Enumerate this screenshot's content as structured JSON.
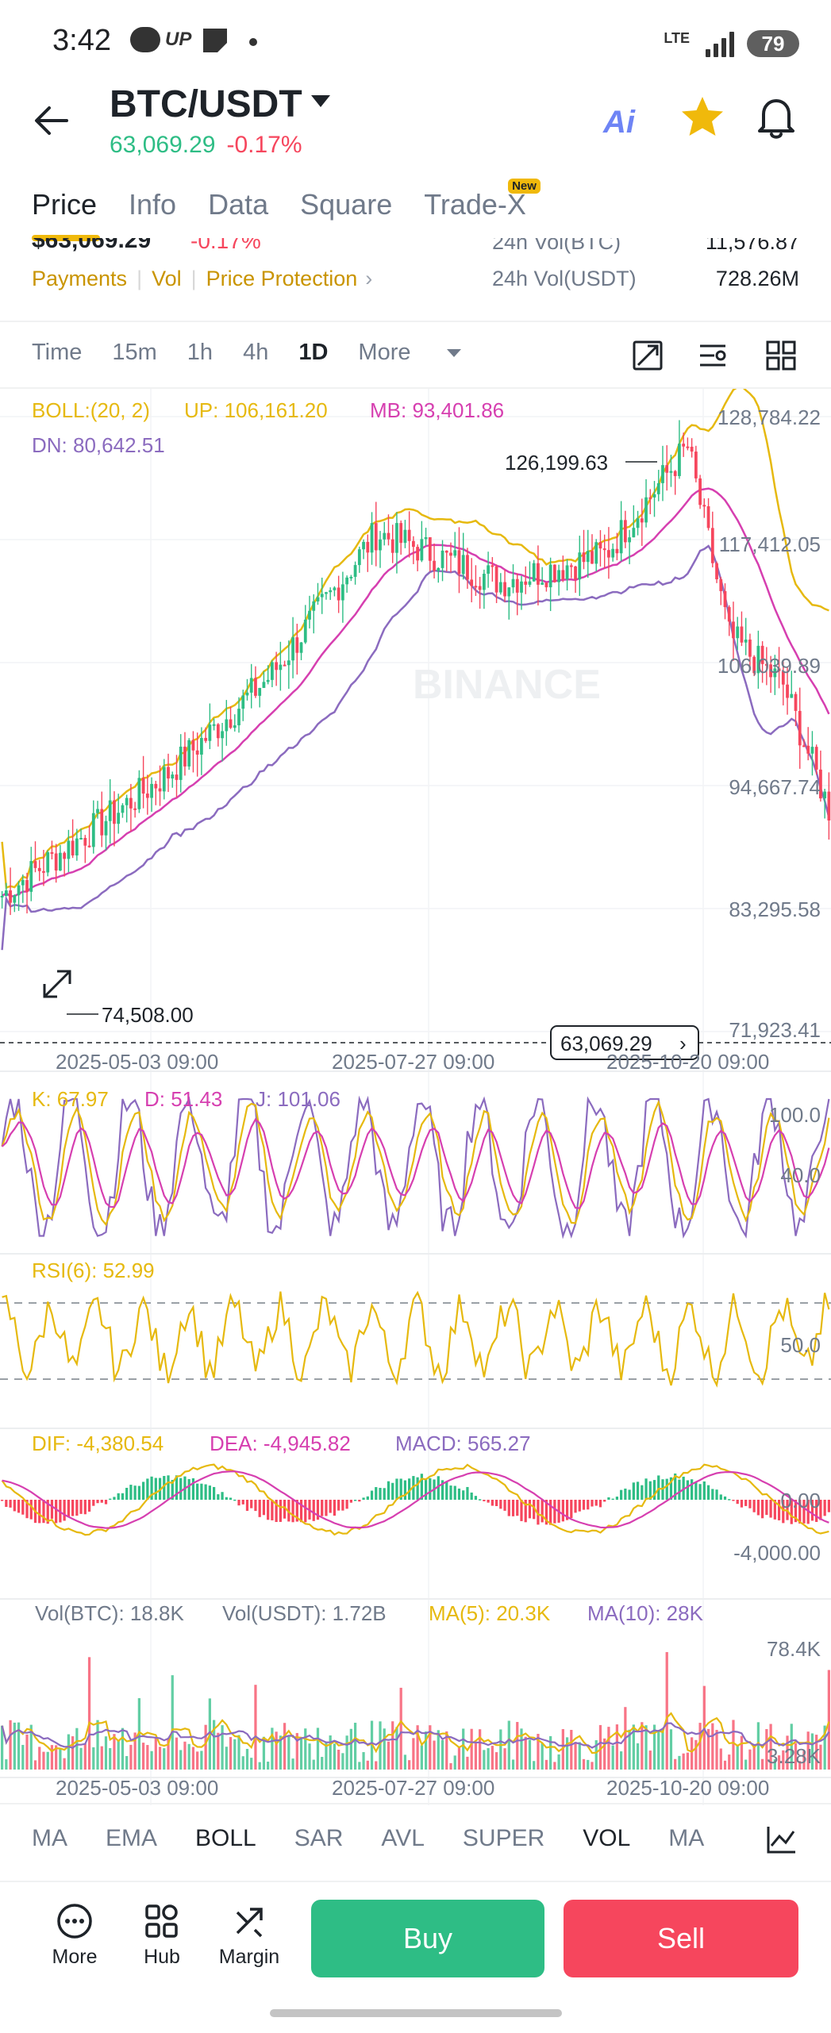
{
  "status_bar": {
    "time": "3:42",
    "battery": "79",
    "network": "LTE"
  },
  "header": {
    "pair": "BTC/USDT",
    "last_price": "63,069.29",
    "change": "-0.17%",
    "ai_label": "Ai"
  },
  "tabs": [
    {
      "label": "Price",
      "active": true
    },
    {
      "label": "Info"
    },
    {
      "label": "Data"
    },
    {
      "label": "Square"
    },
    {
      "label": "Trade-X",
      "badge": "New"
    }
  ],
  "info": {
    "partial_price": "$63,069.29",
    "partial_change": "-0.17%",
    "links": [
      "Payments",
      "Vol",
      "Price Protection"
    ],
    "stats": [
      {
        "label": "24h Vol(BTC)",
        "value": "11,576.87"
      },
      {
        "label": "24h Vol(USDT)",
        "value": "728.26M"
      }
    ]
  },
  "intervals": {
    "items": [
      "Time",
      "15m",
      "1h",
      "4h",
      "1D"
    ],
    "active": "1D",
    "more": "More"
  },
  "colors": {
    "up": "#2ebd85",
    "down": "#f6465d",
    "boll_up": "#e6b90f",
    "boll_mb": "#d63fb0",
    "boll_dn": "#8b6bbf",
    "accent": "#f0b90b"
  },
  "chart_data": [
    {
      "type": "candlestick",
      "name": "BOLL",
      "indicator_values": {
        "BOLL": "BOLL:(20, 2)",
        "UP": "UP: 106,161.20",
        "MB": "MB: 93,401.86",
        "DN": "DN: 80,642.51"
      },
      "y_ticks": [
        "128,784.22",
        "117,412.05",
        "106,039.89",
        "94,667.74",
        "83,295.58",
        "71,923.41"
      ],
      "ylim": [
        71923.41,
        128784.22
      ],
      "x_ticks": [
        "2025-05-03 09:00",
        "2025-07-27 09:00",
        "2025-10-20 09:00"
      ],
      "annotations": {
        "high": "126,199.63",
        "low": "74,508.00",
        "last": "63,069.29"
      },
      "anchors": {
        "start": 84500,
        "may3": 95800,
        "jun": 105000,
        "jul": 118000,
        "jul27": 117000,
        "aug": 113500,
        "sep": 116000,
        "oct6": 126000,
        "oct20": 108500,
        "nov": 104000,
        "end": 92500
      },
      "watermark": "BINANCE"
    },
    {
      "type": "line",
      "name": "KDJ",
      "values": {
        "K": "K: 67.97",
        "D": "D: 51.43",
        "J": "J: 101.06"
      },
      "y_ticks": [
        "100.0",
        "40.0"
      ]
    },
    {
      "type": "line",
      "name": "RSI",
      "values": {
        "RSI": "RSI(6): 52.99"
      },
      "y_ticks": [
        "50.0"
      ]
    },
    {
      "type": "bar",
      "name": "MACD",
      "values": {
        "DIF": "DIF: -4,380.54",
        "DEA": "DEA: -4,945.82",
        "MACD": "MACD: 565.27"
      },
      "y_ticks": [
        "0.00",
        "-4,000.00"
      ]
    },
    {
      "type": "bar",
      "name": "VOL",
      "values": {
        "VOL_BTC": "Vol(BTC): 18.8K",
        "VOL_USDT": "Vol(USDT): 1.72B",
        "MA5": "MA(5): 20.3K",
        "MA10": "MA(10): 28K"
      },
      "y_ticks": [
        "78.4K",
        "3.28K"
      ],
      "x_ticks": [
        "2025-05-03 09:00",
        "2025-07-27 09:00",
        "2025-10-20 09:00"
      ]
    }
  ],
  "indicator_bar": {
    "items": [
      "MA",
      "EMA",
      "BOLL",
      "SAR",
      "AVL",
      "SUPER",
      "VOL",
      "MA"
    ],
    "active": [
      "BOLL",
      "VOL"
    ]
  },
  "bottom_bar": {
    "more": "More",
    "hub": "Hub",
    "margin": "Margin",
    "buy": "Buy",
    "sell": "Sell"
  }
}
